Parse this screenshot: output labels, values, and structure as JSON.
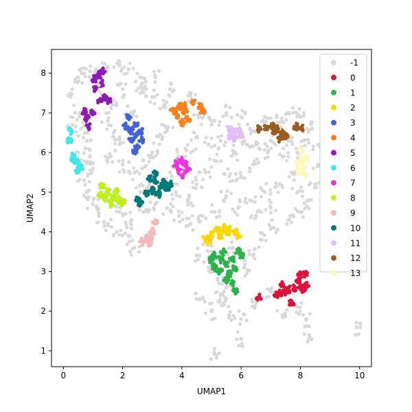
{
  "chart_data": {
    "type": "scatter",
    "title": "",
    "xlabel": "UMAP1",
    "ylabel": "UMAP2",
    "xlim": [
      -0.4,
      10.4
    ],
    "ylim": [
      0.6,
      8.6
    ],
    "xticks": [
      0,
      2,
      4,
      6,
      8,
      10
    ],
    "yticks": [
      1,
      2,
      3,
      4,
      5,
      6,
      7,
      8
    ],
    "grid": false,
    "legend_position": "upper-right",
    "series": [
      {
        "name": "-1",
        "color": "#d9d9d9",
        "points": [
          [
            0.3,
            7.6
          ],
          [
            0.5,
            7.9
          ],
          [
            0.7,
            8.0
          ],
          [
            1.1,
            8.1
          ],
          [
            1.5,
            8.15
          ],
          [
            1.9,
            8.2
          ],
          [
            2.2,
            8.1
          ],
          [
            0.4,
            7.0
          ],
          [
            0.6,
            6.6
          ],
          [
            0.8,
            6.3
          ],
          [
            0.9,
            5.9
          ],
          [
            1.0,
            5.6
          ],
          [
            0.7,
            5.3
          ],
          [
            0.8,
            5.0
          ],
          [
            1.0,
            4.7
          ],
          [
            1.2,
            4.4
          ],
          [
            1.5,
            4.2
          ],
          [
            1.8,
            4.0
          ],
          [
            2.2,
            3.9
          ],
          [
            2.4,
            3.6
          ],
          [
            1.5,
            6.8
          ],
          [
            1.7,
            6.5
          ],
          [
            1.9,
            6.2
          ],
          [
            1.6,
            5.9
          ],
          [
            2.0,
            5.7
          ],
          [
            2.4,
            5.5
          ],
          [
            2.7,
            5.8
          ],
          [
            3.0,
            6.0
          ],
          [
            3.2,
            6.4
          ],
          [
            3.5,
            6.6
          ],
          [
            3.4,
            7.2
          ],
          [
            3.0,
            7.4
          ],
          [
            2.6,
            7.5
          ],
          [
            2.3,
            7.0
          ],
          [
            1.8,
            7.2
          ],
          [
            2.0,
            7.6
          ],
          [
            2.6,
            7.9
          ],
          [
            3.1,
            7.9
          ],
          [
            3.6,
            7.6
          ],
          [
            4.3,
            7.5
          ],
          [
            4.6,
            6.9
          ],
          [
            4.5,
            6.4
          ],
          [
            4.3,
            6.0
          ],
          [
            3.9,
            5.9
          ],
          [
            3.6,
            5.5
          ],
          [
            3.8,
            5.0
          ],
          [
            4.2,
            4.8
          ],
          [
            4.5,
            5.2
          ],
          [
            4.8,
            5.5
          ],
          [
            5.1,
            5.8
          ],
          [
            5.3,
            6.3
          ],
          [
            5.1,
            6.8
          ],
          [
            5.5,
            7.0
          ],
          [
            6.0,
            6.9
          ],
          [
            6.3,
            6.6
          ],
          [
            6.5,
            6.2
          ],
          [
            6.8,
            6.9
          ],
          [
            7.2,
            6.9
          ],
          [
            7.6,
            7.0
          ],
          [
            8.0,
            6.9
          ],
          [
            8.4,
            6.6
          ],
          [
            8.6,
            6.2
          ],
          [
            8.6,
            5.7
          ],
          [
            8.5,
            5.2
          ],
          [
            8.3,
            4.8
          ],
          [
            8.0,
            4.5
          ],
          [
            7.6,
            4.3
          ],
          [
            7.1,
            4.1
          ],
          [
            6.7,
            3.8
          ],
          [
            6.4,
            3.4
          ],
          [
            6.1,
            3.1
          ],
          [
            6.0,
            5.4
          ],
          [
            6.4,
            5.7
          ],
          [
            6.9,
            6.0
          ],
          [
            7.4,
            5.9
          ],
          [
            7.8,
            5.5
          ],
          [
            7.3,
            5.2
          ],
          [
            6.8,
            5.0
          ],
          [
            6.3,
            4.8
          ],
          [
            5.9,
            4.6
          ],
          [
            5.5,
            4.9
          ],
          [
            5.1,
            4.5
          ],
          [
            4.7,
            4.4
          ],
          [
            4.3,
            4.2
          ],
          [
            3.9,
            4.4
          ],
          [
            3.5,
            4.6
          ],
          [
            3.1,
            4.7
          ],
          [
            2.7,
            4.5
          ],
          [
            2.3,
            4.3
          ],
          [
            1.9,
            4.5
          ],
          [
            5.6,
            5.4
          ],
          [
            5.8,
            6.0
          ],
          [
            6.2,
            6.2
          ],
          [
            7.0,
            6.3
          ],
          [
            7.6,
            6.3
          ],
          [
            8.1,
            6.3
          ],
          [
            7.9,
            5.0
          ],
          [
            7.0,
            4.6
          ],
          [
            6.5,
            4.4
          ],
          [
            5.7,
            3.6
          ],
          [
            4.9,
            3.7
          ],
          [
            4.6,
            3.4
          ],
          [
            4.9,
            3.1
          ],
          [
            5.2,
            2.8
          ],
          [
            5.5,
            2.6
          ],
          [
            5.3,
            2.4
          ],
          [
            5.4,
            2.2
          ],
          [
            5.0,
            2.0
          ],
          [
            5.6,
            1.9
          ],
          [
            6.0,
            1.8
          ],
          [
            6.5,
            2.2
          ],
          [
            7.0,
            2.5
          ],
          [
            7.4,
            1.9
          ],
          [
            7.9,
            2.1
          ],
          [
            8.3,
            1.4
          ],
          [
            8.2,
            1.8
          ],
          [
            6.0,
            1.3
          ],
          [
            5.1,
            0.95
          ],
          [
            4.6,
            2.3
          ],
          [
            9.9,
            1.6
          ],
          [
            0.5,
            6.0
          ],
          [
            0.3,
            6.7
          ],
          [
            1.2,
            7.7
          ],
          [
            2.8,
            7.6
          ],
          [
            2.9,
            5.2
          ],
          [
            2.6,
            5.0
          ],
          [
            4.0,
            5.5
          ],
          [
            4.9,
            6.2
          ],
          [
            7.3,
            6.6
          ],
          [
            7.9,
            6.0
          ]
        ]
      },
      {
        "name": "0",
        "color": "#dc143c",
        "points": [
          [
            7.4,
            2.65
          ],
          [
            7.6,
            2.55
          ],
          [
            7.8,
            2.6
          ],
          [
            7.9,
            2.75
          ],
          [
            8.0,
            2.9
          ],
          [
            8.15,
            2.95
          ],
          [
            8.2,
            2.65
          ],
          [
            8.1,
            2.55
          ],
          [
            7.5,
            2.5
          ],
          [
            7.3,
            2.45
          ],
          [
            7.2,
            2.4
          ],
          [
            7.7,
            2.2
          ],
          [
            6.6,
            2.35
          ],
          [
            8.0,
            2.6
          ]
        ]
      },
      {
        "name": "1",
        "color": "#2db24a",
        "points": [
          [
            5.1,
            3.4
          ],
          [
            5.3,
            3.3
          ],
          [
            5.5,
            3.2
          ],
          [
            5.7,
            3.3
          ],
          [
            5.9,
            3.5
          ],
          [
            6.0,
            3.4
          ],
          [
            5.8,
            3.1
          ],
          [
            5.6,
            2.95
          ],
          [
            5.7,
            2.7
          ],
          [
            5.8,
            2.5
          ],
          [
            5.5,
            2.8
          ],
          [
            5.3,
            3.0
          ],
          [
            5.1,
            3.1
          ],
          [
            5.0,
            3.3
          ],
          [
            5.4,
            3.5
          ]
        ]
      },
      {
        "name": "2",
        "color": "#ffd700",
        "points": [
          [
            4.8,
            3.85
          ],
          [
            5.0,
            3.95
          ],
          [
            5.2,
            4.05
          ],
          [
            5.4,
            4.1
          ],
          [
            5.6,
            4.05
          ],
          [
            5.8,
            4.0
          ],
          [
            5.9,
            3.9
          ],
          [
            5.3,
            3.9
          ],
          [
            4.9,
            3.75
          ],
          [
            5.5,
            3.95
          ]
        ]
      },
      {
        "name": "3",
        "color": "#4262d6",
        "points": [
          [
            2.1,
            6.65
          ],
          [
            2.3,
            6.55
          ],
          [
            2.5,
            6.45
          ],
          [
            2.65,
            6.3
          ],
          [
            2.5,
            6.15
          ],
          [
            2.3,
            6.35
          ],
          [
            2.45,
            6.7
          ],
          [
            2.2,
            6.9
          ],
          [
            2.6,
            6.55
          ],
          [
            2.4,
            6.05
          ]
        ]
      },
      {
        "name": "4",
        "color": "#f5821f",
        "points": [
          [
            3.7,
            7.05
          ],
          [
            3.9,
            7.15
          ],
          [
            4.1,
            7.05
          ],
          [
            4.2,
            6.85
          ],
          [
            4.0,
            6.75
          ],
          [
            3.85,
            6.95
          ],
          [
            4.4,
            7.25
          ],
          [
            4.6,
            7.15
          ],
          [
            4.7,
            7.05
          ],
          [
            4.05,
            7.2
          ]
        ]
      },
      {
        "name": "5",
        "color": "#8e1cb4",
        "points": [
          [
            1.05,
            7.85
          ],
          [
            1.2,
            7.95
          ],
          [
            1.3,
            7.75
          ],
          [
            1.1,
            7.6
          ],
          [
            1.4,
            7.4
          ],
          [
            1.55,
            7.3
          ],
          [
            1.25,
            7.3
          ],
          [
            0.7,
            7.05
          ],
          [
            0.8,
            6.85
          ],
          [
            0.85,
            6.65
          ],
          [
            1.0,
            7.0
          ],
          [
            1.35,
            8.05
          ]
        ]
      },
      {
        "name": "6",
        "color": "#40e8ec",
        "points": [
          [
            0.25,
            6.55
          ],
          [
            0.2,
            6.3
          ],
          [
            0.3,
            5.9
          ],
          [
            0.45,
            5.75
          ],
          [
            0.6,
            5.65
          ],
          [
            0.5,
            5.55
          ],
          [
            0.35,
            5.8
          ]
        ]
      },
      {
        "name": "7",
        "color": "#ee33e0",
        "points": [
          [
            3.8,
            5.7
          ],
          [
            3.95,
            5.8
          ],
          [
            4.1,
            5.7
          ],
          [
            4.2,
            5.55
          ],
          [
            4.05,
            5.45
          ],
          [
            3.9,
            5.55
          ]
        ]
      },
      {
        "name": "8",
        "color": "#bfef1f",
        "points": [
          [
            1.3,
            5.15
          ],
          [
            1.5,
            5.0
          ],
          [
            1.7,
            4.85
          ],
          [
            1.9,
            4.8
          ],
          [
            1.6,
            4.7
          ],
          [
            1.4,
            4.85
          ],
          [
            1.8,
            5.0
          ],
          [
            1.25,
            4.95
          ],
          [
            2.0,
            4.75
          ]
        ]
      },
      {
        "name": "9",
        "color": "#f6b9b9",
        "points": [
          [
            2.65,
            3.75
          ],
          [
            2.8,
            3.85
          ],
          [
            2.95,
            3.8
          ],
          [
            3.0,
            4.0
          ],
          [
            3.1,
            4.25
          ],
          [
            2.9,
            3.7
          ]
        ]
      },
      {
        "name": "10",
        "color": "#007a78",
        "points": [
          [
            2.9,
            5.35
          ],
          [
            3.1,
            5.3
          ],
          [
            3.3,
            5.15
          ],
          [
            3.5,
            5.1
          ],
          [
            3.6,
            5.2
          ],
          [
            3.2,
            4.95
          ],
          [
            3.0,
            5.05
          ],
          [
            2.8,
            4.95
          ],
          [
            2.6,
            4.7
          ],
          [
            2.5,
            4.8
          ],
          [
            3.4,
            5.25
          ],
          [
            3.1,
            5.45
          ]
        ]
      },
      {
        "name": "11",
        "color": "#e6bdf8",
        "points": [
          [
            5.6,
            6.6
          ],
          [
            5.75,
            6.5
          ],
          [
            5.9,
            6.55
          ],
          [
            6.0,
            6.45
          ],
          [
            5.8,
            6.35
          ],
          [
            5.65,
            6.4
          ]
        ]
      },
      {
        "name": "12",
        "color": "#9a5c1f",
        "points": [
          [
            6.6,
            6.6
          ],
          [
            6.85,
            6.65
          ],
          [
            7.05,
            6.7
          ],
          [
            7.25,
            6.6
          ],
          [
            7.4,
            6.5
          ],
          [
            7.5,
            6.4
          ],
          [
            7.3,
            6.35
          ],
          [
            7.1,
            6.55
          ],
          [
            7.85,
            6.65
          ],
          [
            8.05,
            6.6
          ]
        ]
      },
      {
        "name": "13",
        "color": "#fff7c0",
        "points": [
          [
            7.9,
            5.7
          ],
          [
            8.05,
            5.8
          ],
          [
            8.2,
            5.85
          ],
          [
            8.1,
            5.65
          ],
          [
            7.95,
            5.5
          ],
          [
            8.15,
            5.45
          ],
          [
            8.05,
            6.05
          ]
        ]
      }
    ]
  }
}
